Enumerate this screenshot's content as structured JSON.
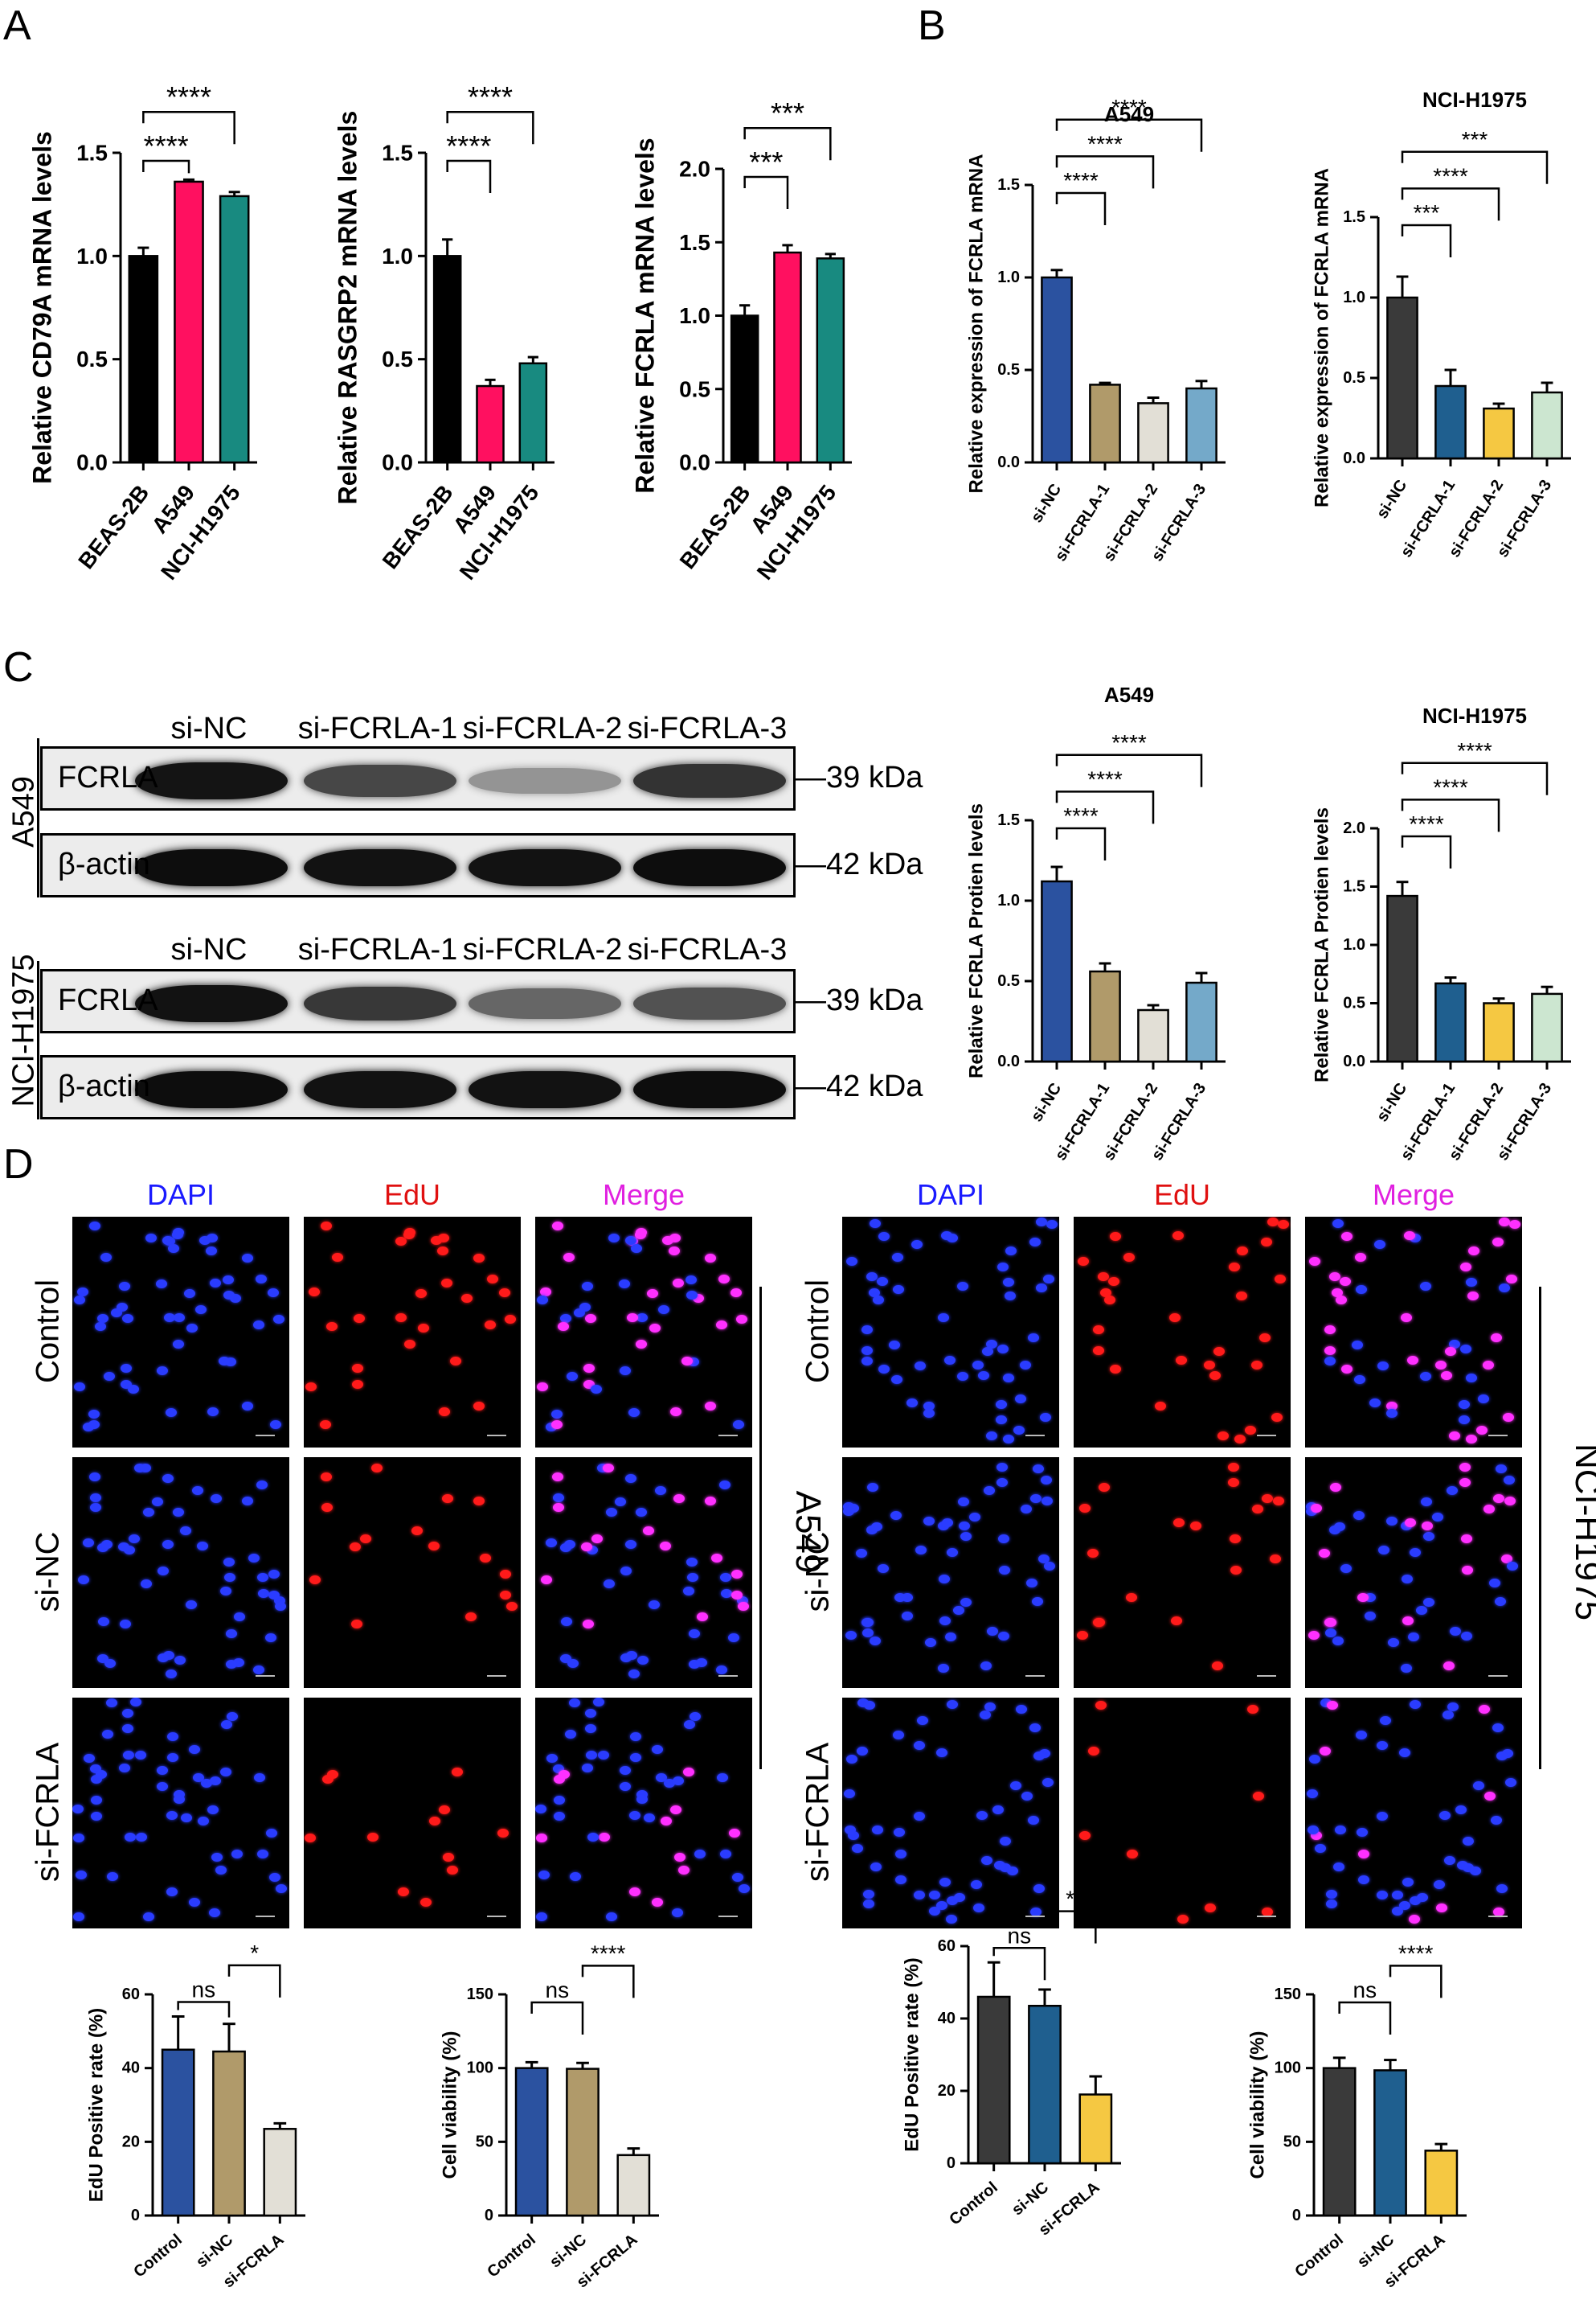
{
  "panels": {
    "a": "A",
    "b": "B",
    "c": "C",
    "d": "D"
  },
  "chart_data": [
    {
      "id": "a1",
      "type": "bar",
      "categories": [
        "BEAS-2B",
        "A549",
        "NCI-H1975"
      ],
      "values": [
        1.0,
        1.36,
        1.29
      ],
      "errors": [
        0.04,
        0.01,
        0.02
      ],
      "colors": [
        "#000000",
        "#ff1060",
        "#188a80"
      ],
      "ylabel": "Relative CD79A mRNA levels",
      "ylim": [
        0,
        1.5
      ],
      "ticks": [
        "0.0",
        "0.5",
        "1.0",
        "1.5"
      ],
      "sig": [
        {
          "from": 0,
          "to": 1,
          "label": "****"
        },
        {
          "from": 0,
          "to": 2,
          "label": "****"
        }
      ]
    },
    {
      "id": "a2",
      "type": "bar",
      "categories": [
        "BEAS-2B",
        "A549",
        "NCI-H1975"
      ],
      "values": [
        1.0,
        0.37,
        0.48
      ],
      "errors": [
        0.08,
        0.03,
        0.03
      ],
      "colors": [
        "#000000",
        "#ff1060",
        "#188a80"
      ],
      "ylabel": "Relative RASGRP2 mRNA levels",
      "ylim": [
        0,
        1.5
      ],
      "ticks": [
        "0.0",
        "0.5",
        "1.0",
        "1.5"
      ],
      "sig": [
        {
          "from": 0,
          "to": 1,
          "label": "****"
        },
        {
          "from": 0,
          "to": 2,
          "label": "****"
        }
      ]
    },
    {
      "id": "a3",
      "type": "bar",
      "categories": [
        "BEAS-2B",
        "A549",
        "NCI-H1975"
      ],
      "values": [
        1.0,
        1.43,
        1.39
      ],
      "errors": [
        0.07,
        0.05,
        0.03
      ],
      "colors": [
        "#000000",
        "#ff1060",
        "#188a80"
      ],
      "ylabel": "Relative FCRLA mRNA levels",
      "ylim": [
        0,
        2.0
      ],
      "ticks": [
        "0.0",
        "0.5",
        "1.0",
        "1.5",
        "2.0"
      ],
      "sig": [
        {
          "from": 0,
          "to": 1,
          "label": "***"
        },
        {
          "from": 0,
          "to": 2,
          "label": "***"
        }
      ]
    },
    {
      "id": "b1",
      "type": "bar",
      "title": "A549",
      "categories": [
        "si-NC",
        "si-FCRLA-1",
        "si-FCRLA-2",
        "si-FCRLA-3"
      ],
      "values": [
        1.0,
        0.42,
        0.32,
        0.4
      ],
      "errors": [
        0.04,
        0.01,
        0.03,
        0.04
      ],
      "colors": [
        "#2b52a0",
        "#b09a6a",
        "#e2dfd6",
        "#74a9c9"
      ],
      "ylabel": "Relative expression of FCRLA mRNA",
      "ylim": [
        0,
        1.5
      ],
      "ticks": [
        "0.0",
        "0.5",
        "1.0",
        "1.5"
      ],
      "sig": [
        {
          "from": 0,
          "to": 1,
          "label": "****"
        },
        {
          "from": 0,
          "to": 2,
          "label": "****"
        },
        {
          "from": 0,
          "to": 3,
          "label": "****"
        }
      ]
    },
    {
      "id": "b2",
      "type": "bar",
      "title": "NCI-H1975",
      "categories": [
        "si-NC",
        "si-FCRLA-1",
        "si-FCRLA-2",
        "si-FCRLA-3"
      ],
      "values": [
        1.0,
        0.45,
        0.31,
        0.41
      ],
      "errors": [
        0.13,
        0.1,
        0.03,
        0.06
      ],
      "colors": [
        "#3a3a3a",
        "#1f5f8f",
        "#f5c842",
        "#cce6d0"
      ],
      "ylabel": "Relative expression of FCRLA mRNA",
      "ylim": [
        0,
        1.5
      ],
      "ticks": [
        "0.0",
        "0.5",
        "1.0",
        "1.5"
      ],
      "sig": [
        {
          "from": 0,
          "to": 1,
          "label": "***"
        },
        {
          "from": 0,
          "to": 2,
          "label": "****"
        },
        {
          "from": 0,
          "to": 3,
          "label": "***"
        }
      ]
    },
    {
      "id": "c1",
      "type": "bar",
      "title": "A549",
      "categories": [
        "si-NC",
        "si-FCRLA-1",
        "si-FCRLA-2",
        "si-FCRLA-3"
      ],
      "values": [
        1.12,
        0.56,
        0.32,
        0.49
      ],
      "errors": [
        0.09,
        0.05,
        0.03,
        0.06
      ],
      "colors": [
        "#2b52a0",
        "#b09a6a",
        "#e2dfd6",
        "#74a9c9"
      ],
      "ylabel": "Relative FCRLA Protien levels",
      "ylim": [
        0,
        1.5
      ],
      "ticks": [
        "0.0",
        "0.5",
        "1.0",
        "1.5"
      ],
      "sig": [
        {
          "from": 0,
          "to": 1,
          "label": "****"
        },
        {
          "from": 0,
          "to": 2,
          "label": "****"
        },
        {
          "from": 0,
          "to": 3,
          "label": "****"
        }
      ]
    },
    {
      "id": "c2",
      "type": "bar",
      "title": "NCI-H1975",
      "categories": [
        "si-NC",
        "si-FCRLA-1",
        "si-FCRLA-2",
        "si-FCRLA-3"
      ],
      "values": [
        1.42,
        0.67,
        0.5,
        0.58
      ],
      "errors": [
        0.12,
        0.05,
        0.04,
        0.06
      ],
      "colors": [
        "#3a3a3a",
        "#1f5f8f",
        "#f5c842",
        "#cce6d0"
      ],
      "ylabel": "Relative FCRLA Protien levels",
      "ylim": [
        0,
        2.0
      ],
      "ticks": [
        "0.0",
        "0.5",
        "1.0",
        "1.5",
        "2.0"
      ],
      "sig": [
        {
          "from": 0,
          "to": 1,
          "label": "****"
        },
        {
          "from": 0,
          "to": 2,
          "label": "****"
        },
        {
          "from": 0,
          "to": 3,
          "label": "****"
        }
      ]
    },
    {
      "id": "d1",
      "type": "bar",
      "categories": [
        "Control",
        "si-NC",
        "si-FCRLA"
      ],
      "values": [
        45,
        44.5,
        23.5
      ],
      "errors": [
        9,
        7.5,
        1.5
      ],
      "colors": [
        "#2b52a0",
        "#b09a6a",
        "#e2dfd6"
      ],
      "ylabel": "EdU Positive rate (%)",
      "ylim": [
        0,
        60
      ],
      "ticks": [
        "0",
        "20",
        "40",
        "60"
      ],
      "sig": [
        {
          "from": 0,
          "to": 1,
          "label": "ns"
        },
        {
          "from": 1,
          "to": 2,
          "label": "*"
        }
      ]
    },
    {
      "id": "d2",
      "type": "bar",
      "categories": [
        "Control",
        "si-NC",
        "si-FCRLA"
      ],
      "values": [
        100,
        99.5,
        41
      ],
      "errors": [
        4,
        4,
        4.5
      ],
      "colors": [
        "#2b52a0",
        "#b09a6a",
        "#e2dfd6"
      ],
      "ylabel": "Cell viability (%)",
      "ylim": [
        0,
        150
      ],
      "ticks": [
        "0",
        "50",
        "100",
        "150"
      ],
      "sig": [
        {
          "from": 0,
          "to": 1,
          "label": "ns"
        },
        {
          "from": 1,
          "to": 2,
          "label": "****"
        }
      ]
    },
    {
      "id": "d3",
      "type": "bar",
      "categories": [
        "Control",
        "si-NC",
        "si-FCRLA"
      ],
      "values": [
        46,
        43.5,
        19
      ],
      "errors": [
        9.5,
        4.5,
        5
      ],
      "colors": [
        "#3a3a3a",
        "#1f5f8f",
        "#f5c842"
      ],
      "ylabel": "EdU Positive rate (%)",
      "ylim": [
        0,
        60
      ],
      "ticks": [
        "0",
        "20",
        "40",
        "60"
      ],
      "sig": [
        {
          "from": 0,
          "to": 1,
          "label": "ns"
        },
        {
          "from": 1,
          "to": 2,
          "label": "*"
        }
      ]
    },
    {
      "id": "d4",
      "type": "bar",
      "categories": [
        "Control",
        "si-NC",
        "si-FCRLA"
      ],
      "values": [
        100,
        98.5,
        44
      ],
      "errors": [
        7,
        7,
        4.5
      ],
      "colors": [
        "#3a3a3a",
        "#1f5f8f",
        "#f5c842"
      ],
      "ylabel": "Cell viability (%)",
      "ylim": [
        0,
        150
      ],
      "ticks": [
        "0",
        "50",
        "100",
        "150"
      ],
      "sig": [
        {
          "from": 0,
          "to": 1,
          "label": "ns"
        },
        {
          "from": 1,
          "to": 2,
          "label": "****"
        }
      ]
    }
  ],
  "western": {
    "a549": {
      "label": "A549",
      "lanes": [
        "si-NC",
        "si-FCRLA-1",
        "si-FCRLA-2",
        "si-FCRLA-3"
      ],
      "rows": [
        {
          "name": "FCRLA",
          "kda": "39 kDa",
          "intensity": [
            0.92,
            0.72,
            0.42,
            0.8
          ]
        },
        {
          "name": "β-actin",
          "kda": "42 kDa",
          "intensity": [
            0.95,
            0.93,
            0.93,
            0.95
          ]
        }
      ]
    },
    "h1975": {
      "label": "NCI-H1975",
      "lanes": [
        "si-NC",
        "si-FCRLA-1",
        "si-FCRLA-2",
        "si-FCRLA-3"
      ],
      "rows": [
        {
          "name": "FCRLA",
          "kda": "39 kDa",
          "intensity": [
            0.93,
            0.78,
            0.6,
            0.68
          ]
        },
        {
          "name": "β-actin",
          "kda": "42 kDa",
          "intensity": [
            0.95,
            0.93,
            0.93,
            0.95
          ]
        }
      ]
    }
  },
  "microscopy": {
    "channels": [
      "DAPI",
      "EdU",
      "Merge"
    ],
    "channel_colors": [
      "#1a1aff",
      "#e01010",
      "#e020e0"
    ],
    "rows": [
      "Control",
      "si-NC",
      "si-FCRLA"
    ],
    "cell_lines": [
      "A549",
      "NCI-H1975"
    ]
  }
}
